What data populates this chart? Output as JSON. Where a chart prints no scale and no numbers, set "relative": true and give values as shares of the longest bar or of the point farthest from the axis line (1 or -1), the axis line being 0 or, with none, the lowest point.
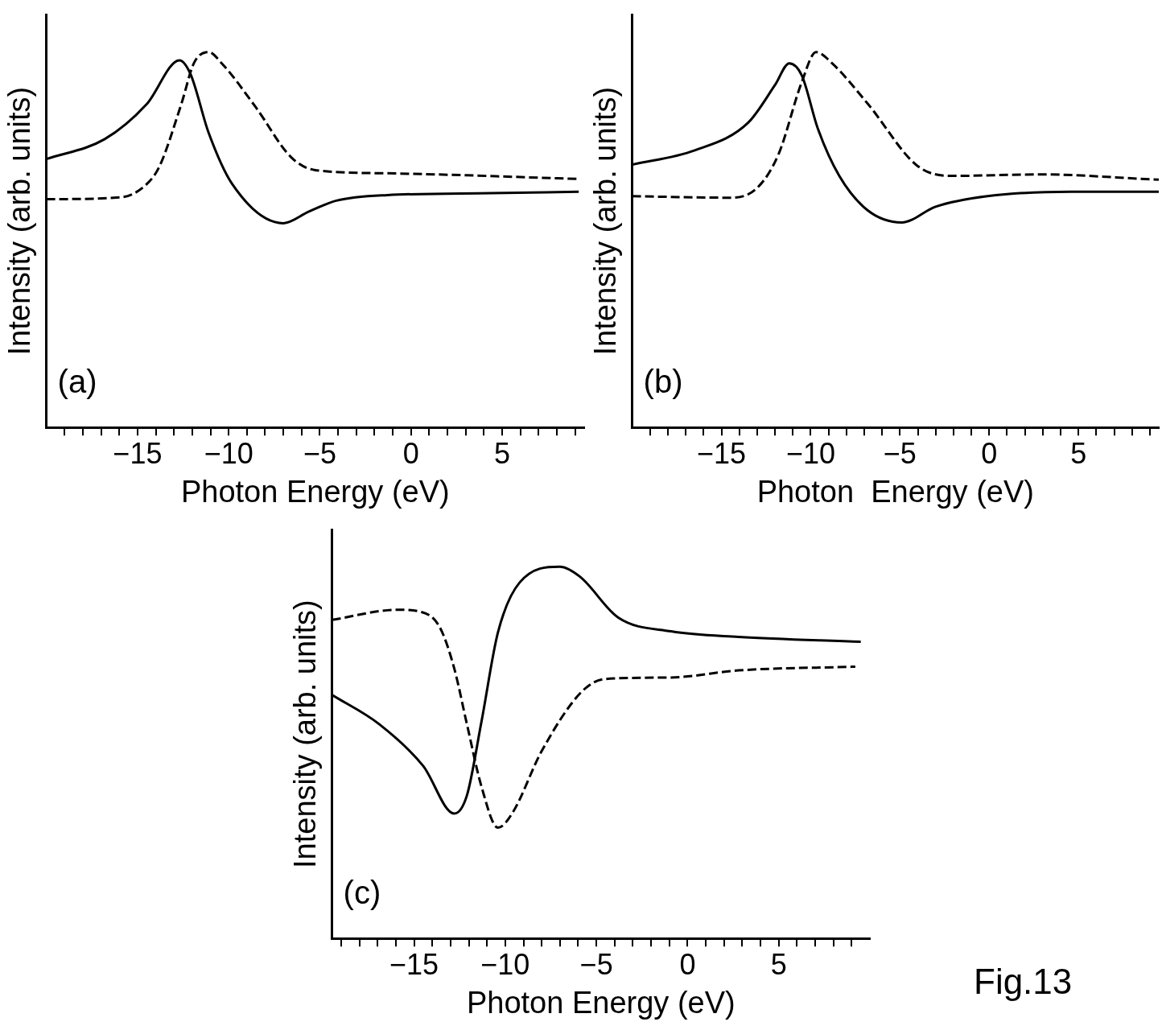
{
  "chart_data": [
    {
      "type": "line",
      "relative": true,
      "xlabel": "Photon Energy (eV)",
      "ylabel": "Intensity (arb. units)",
      "annotations": [
        "(a)"
      ],
      "tick_labels": "x",
      "marker": "none",
      "xlim": [
        -20,
        9.5
      ],
      "xticks": [
        {
          "value": -19,
          "label": null
        },
        {
          "value": -18,
          "label": null
        },
        {
          "value": -17,
          "label": null
        },
        {
          "value": -16,
          "label": null
        },
        {
          "value": -15,
          "label": "−15"
        },
        {
          "value": -14,
          "label": null
        },
        {
          "value": -13,
          "label": null
        },
        {
          "value": -12,
          "label": null
        },
        {
          "value": -11,
          "label": null
        },
        {
          "value": -10,
          "label": "−10"
        },
        {
          "value": -9,
          "label": null
        },
        {
          "value": -8,
          "label": null
        },
        {
          "value": -7,
          "label": null
        },
        {
          "value": -6,
          "label": null
        },
        {
          "value": -5,
          "label": "−5"
        },
        {
          "value": -4,
          "label": null
        },
        {
          "value": -3,
          "label": null
        },
        {
          "value": -2,
          "label": null
        },
        {
          "value": -1,
          "label": null
        },
        {
          "value": 0,
          "label": "0"
        },
        {
          "value": 1,
          "label": null
        },
        {
          "value": 2,
          "label": null
        },
        {
          "value": 3,
          "label": null
        },
        {
          "value": 4,
          "label": null
        },
        {
          "value": 5,
          "label": "5"
        },
        {
          "value": 6,
          "label": null
        },
        {
          "value": 7,
          "label": null
        },
        {
          "value": 8,
          "label": null
        },
        {
          "value": 9,
          "label": null
        }
      ],
      "series": [
        {
          "color": "#000000",
          "line_style": "solid",
          "x": [
            -20,
            -16.8,
            -14.5,
            -12.7,
            -12.1,
            -11.1,
            -9.8,
            -7.0,
            -5.6,
            -4.1,
            -1.3,
            4.4,
            9.2
          ],
          "values": [
            0.715,
            0.768,
            0.861,
            0.978,
            0.942,
            0.785,
            0.648,
            0.544,
            0.575,
            0.604,
            0.619,
            0.624,
            0.628
          ]
        },
        {
          "color": "#000000",
          "line_style": "dashed",
          "x": [
            -20,
            -15.9,
            -14.5,
            -13.8,
            -12.6,
            -11.9,
            -11.1,
            -10.4,
            -8.5,
            -6.6,
            -5.3,
            -1.3,
            9.2
          ],
          "values": [
            0.608,
            0.613,
            0.648,
            0.695,
            0.861,
            0.971,
            1.0,
            0.971,
            0.852,
            0.721,
            0.686,
            0.677,
            0.662
          ]
        }
      ]
    },
    {
      "type": "line",
      "relative": true,
      "xlabel": "Photon  Energy (eV)",
      "ylabel": "Intensity (arb. units)",
      "annotations": [
        "(b)"
      ],
      "tick_labels": "x",
      "marker": "none",
      "xlim": [
        -20,
        9.5
      ],
      "xticks": [
        {
          "value": -19,
          "label": null
        },
        {
          "value": -18,
          "label": null
        },
        {
          "value": -17,
          "label": null
        },
        {
          "value": -16,
          "label": null
        },
        {
          "value": -15,
          "label": "−15"
        },
        {
          "value": -14,
          "label": null
        },
        {
          "value": -13,
          "label": null
        },
        {
          "value": -12,
          "label": null
        },
        {
          "value": -11,
          "label": null
        },
        {
          "value": -10,
          "label": "−10"
        },
        {
          "value": -9,
          "label": null
        },
        {
          "value": -8,
          "label": null
        },
        {
          "value": -7,
          "label": null
        },
        {
          "value": -6,
          "label": null
        },
        {
          "value": -5,
          "label": "−5"
        },
        {
          "value": -4,
          "label": null
        },
        {
          "value": -3,
          "label": null
        },
        {
          "value": -2,
          "label": null
        },
        {
          "value": -1,
          "label": null
        },
        {
          "value": 0,
          "label": "0"
        },
        {
          "value": 1,
          "label": null
        },
        {
          "value": 2,
          "label": null
        },
        {
          "value": 3,
          "label": null
        },
        {
          "value": 4,
          "label": null
        },
        {
          "value": 5,
          "label": "5"
        },
        {
          "value": 6,
          "label": null
        },
        {
          "value": 7,
          "label": null
        },
        {
          "value": 8,
          "label": null
        },
        {
          "value": 9,
          "label": null
        }
      ],
      "series": [
        {
          "color": "#000000",
          "line_style": "solid",
          "x": [
            -20,
            -16.5,
            -13.5,
            -12.0,
            -11.2,
            -10.5,
            -9.6,
            -8.4,
            -6.8,
            -4.9,
            -3.0,
            -0.1,
            4.6,
            9.5
          ],
          "values": [
            0.7,
            0.738,
            0.812,
            0.912,
            0.97,
            0.938,
            0.796,
            0.67,
            0.578,
            0.546,
            0.588,
            0.616,
            0.628,
            0.628
          ]
        },
        {
          "color": "#000000",
          "line_style": "dashed",
          "x": [
            -20,
            -14.5,
            -13.0,
            -11.8,
            -10.5,
            -9.7,
            -8.8,
            -6.8,
            -4.0,
            -2.0,
            2.8,
            9.5
          ],
          "values": [
            0.616,
            0.612,
            0.638,
            0.728,
            0.92,
            1.0,
            0.97,
            0.862,
            0.696,
            0.67,
            0.674,
            0.66
          ]
        }
      ]
    },
    {
      "type": "line",
      "relative": true,
      "xlabel": "Photon Energy (eV)",
      "ylabel": "Intensity (arb. units)",
      "annotations": [
        "(c)",
        "Fig.13"
      ],
      "tick_labels": "x",
      "marker": "none",
      "xlim": [
        -19.5,
        10
      ],
      "xticks": [
        {
          "value": -19,
          "label": null
        },
        {
          "value": -18,
          "label": null
        },
        {
          "value": -17,
          "label": null
        },
        {
          "value": -16,
          "label": null
        },
        {
          "value": -15,
          "label": "−15"
        },
        {
          "value": -14,
          "label": null
        },
        {
          "value": -13,
          "label": null
        },
        {
          "value": -12,
          "label": null
        },
        {
          "value": -11,
          "label": null
        },
        {
          "value": -10,
          "label": "−10"
        },
        {
          "value": -9,
          "label": null
        },
        {
          "value": -8,
          "label": null
        },
        {
          "value": -7,
          "label": null
        },
        {
          "value": -6,
          "label": null
        },
        {
          "value": -5,
          "label": "−5"
        },
        {
          "value": -4,
          "label": null
        },
        {
          "value": -3,
          "label": null
        },
        {
          "value": -2,
          "label": null
        },
        {
          "value": -1,
          "label": null
        },
        {
          "value": 0,
          "label": "0"
        },
        {
          "value": 1,
          "label": null
        },
        {
          "value": 2,
          "label": null
        },
        {
          "value": 3,
          "label": null
        },
        {
          "value": 4,
          "label": null
        },
        {
          "value": 5,
          "label": "5"
        },
        {
          "value": 6,
          "label": null
        },
        {
          "value": 7,
          "label": null
        },
        {
          "value": 8,
          "label": null
        },
        {
          "value": 9,
          "label": null
        }
      ],
      "series": [
        {
          "color": "#000000",
          "line_style": "solid",
          "x": [
            -19.5,
            -16.9,
            -14.5,
            -12.8,
            -12.1,
            -11.3,
            -10.4,
            -9.2,
            -7.0,
            -5.9,
            -3.8,
            -0.9,
            2.8,
            9.5
          ],
          "values": [
            0.655,
            0.576,
            0.464,
            0.336,
            0.385,
            0.584,
            0.823,
            0.958,
            1.0,
            0.973,
            0.863,
            0.826,
            0.811,
            0.798
          ]
        },
        {
          "color": "#000000",
          "line_style": "dashed",
          "x": [
            -19.5,
            -15.9,
            -14.6,
            -13.6,
            -12.8,
            -12.1,
            -11.3,
            -10.4,
            -9.6,
            -8.0,
            -5.8,
            -4.5,
            -0.9,
            2.8,
            9.2
          ],
          "values": [
            0.857,
            0.884,
            0.878,
            0.838,
            0.727,
            0.576,
            0.408,
            0.298,
            0.338,
            0.504,
            0.664,
            0.698,
            0.702,
            0.721,
            0.731
          ]
        }
      ]
    }
  ]
}
